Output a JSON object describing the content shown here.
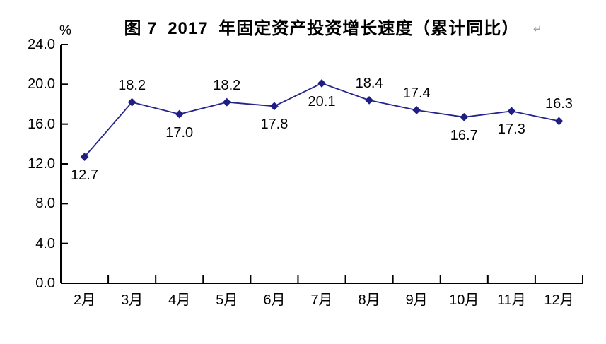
{
  "title": {
    "figure_label": "图 7",
    "year": "2017",
    "rest": "年固定资产投资增长速度（累计同比）",
    "return_mark": "↵"
  },
  "colors": {
    "line": "#24248C",
    "marker": "#1E1E85",
    "axis": "#000000",
    "text": "#000000",
    "background": "#FFFFFF",
    "return_mark": "#9A9A9A"
  },
  "chart_data": {
    "type": "line",
    "title": "图 7 2017 年固定资产投资增长速度（累计同比）",
    "xlabel": "",
    "ylabel": "%",
    "ylim": [
      0.0,
      24.0
    ],
    "ytick_step": 4.0,
    "ytick_labels_top_to_bottom": [
      "24.0",
      "20.0",
      "16.0",
      "12.0",
      "8.0",
      "4.0",
      "0.0"
    ],
    "categories": [
      "2月",
      "3月",
      "4月",
      "5月",
      "6月",
      "7月",
      "8月",
      "9月",
      "10月",
      "11月",
      "12月"
    ],
    "series": [
      {
        "name": "固定资产投资增长速度（累计同比）",
        "values": [
          12.7,
          18.2,
          17.0,
          18.2,
          17.8,
          20.1,
          18.4,
          17.4,
          16.7,
          17.3,
          16.3
        ]
      }
    ],
    "data_label_positions": [
      "below",
      "above",
      "below",
      "above",
      "below",
      "below",
      "above",
      "above",
      "below",
      "below",
      "above"
    ],
    "marker": "diamond",
    "grid": false,
    "legend": "none"
  }
}
